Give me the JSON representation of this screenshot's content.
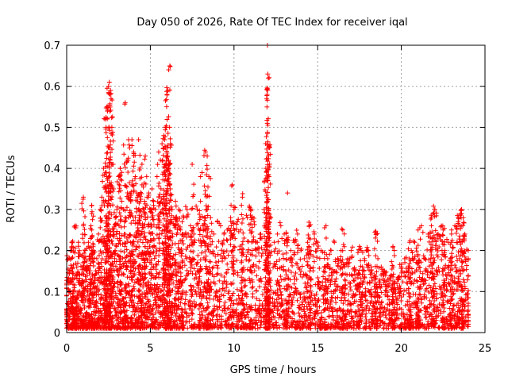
{
  "chart_data": {
    "type": "scatter",
    "title": "Day 050 of 2026, Rate Of TEC Index for receiver iqal",
    "xlabel": "GPS time / hours",
    "ylabel": "ROTI / TECUs",
    "xlim": [
      0,
      25
    ],
    "ylim": [
      0,
      0.7
    ],
    "xticks": [
      0,
      5,
      10,
      15,
      20,
      25
    ],
    "yticks": [
      0,
      0.1,
      0.2,
      0.3,
      0.4,
      0.5,
      0.6,
      0.7
    ],
    "xtick_labels": [
      "0",
      "5",
      "10",
      "15",
      "20",
      "25"
    ],
    "ytick_labels": [
      "0",
      "0.1",
      "0.2",
      "0.3",
      "0.4",
      "0.5",
      "0.6",
      "0.7"
    ],
    "grid": true,
    "marker": "plus",
    "color": "#ff0000",
    "series": [
      {
        "name": "ROTI",
        "x": [
          0.0,
          0.1,
          0.2,
          0.3,
          0.4,
          0.5,
          0.6,
          0.7,
          0.8,
          0.9,
          1.0,
          1.1,
          1.2,
          1.3,
          1.4,
          1.5,
          1.6,
          1.7,
          1.8,
          1.9,
          2.0,
          2.1,
          2.2,
          2.3,
          2.4,
          2.5,
          2.6,
          2.7,
          2.8,
          2.9,
          3.0,
          3.1,
          3.2,
          3.3,
          3.4,
          3.5,
          3.6,
          3.7,
          3.8,
          3.9,
          4.0,
          4.1,
          4.2,
          4.3,
          4.4,
          4.5,
          4.6,
          4.7,
          4.8,
          4.9,
          5.0,
          5.1,
          5.2,
          5.3,
          5.4,
          5.5,
          5.6,
          5.7,
          5.8,
          5.9,
          6.0,
          6.1,
          6.2,
          6.3,
          6.4,
          6.5,
          6.6,
          6.7,
          6.8,
          6.9,
          7.0,
          7.2,
          7.4,
          7.6,
          7.8,
          8.0,
          8.2,
          8.4,
          8.6,
          8.8,
          9.0,
          9.2,
          9.4,
          9.6,
          9.8,
          10.0,
          10.2,
          10.4,
          10.6,
          10.8,
          11.0,
          11.2,
          11.4,
          11.6,
          11.8,
          12.0,
          12.2,
          12.4,
          12.6,
          12.8,
          13.0,
          13.2,
          13.4,
          13.6,
          13.8,
          14.0,
          14.2,
          14.4,
          14.6,
          14.8,
          15.0,
          15.2,
          15.4,
          15.6,
          15.8,
          16.0,
          16.2,
          16.4,
          16.6,
          16.8,
          17.0,
          17.2,
          17.4,
          17.6,
          17.8,
          18.0,
          18.2,
          18.4,
          18.6,
          18.8,
          19.0,
          19.2,
          19.4,
          19.6,
          19.8,
          20.0,
          20.2,
          20.4,
          20.6,
          20.8,
          21.0,
          21.2,
          21.4,
          21.6,
          21.8,
          22.0,
          22.2,
          22.4,
          22.6,
          22.8,
          23.0,
          23.2,
          23.4,
          23.6,
          23.8,
          24.0,
          2.5,
          2.55,
          2.6,
          2.62,
          2.65,
          2.4,
          2.45,
          2.3,
          2.35,
          3.5,
          6.0,
          6.05,
          6.1,
          6.15,
          6.2,
          5.95,
          5.9,
          5.85,
          12.0,
          12.02,
          12.05,
          11.98,
          11.95,
          12.1,
          12.08,
          11.9,
          8.3,
          8.4,
          8.5,
          9.9,
          13.2,
          16.5,
          17.5,
          21.8,
          22.0,
          23.6,
          23.7,
          4.3,
          4.5,
          4.7,
          3.9,
          3.2,
          1.0,
          1.5,
          0.5,
          0.3,
          7.5,
          8.0,
          10.5,
          11.0,
          14.5,
          15.5,
          18.5,
          19.5,
          20.5,
          21.0,
          22.5,
          23.0,
          23.4
        ],
        "y": [
          0.12,
          0.18,
          0.15,
          0.2,
          0.1,
          0.08,
          0.14,
          0.22,
          0.19,
          0.12,
          0.26,
          0.2,
          0.16,
          0.22,
          0.18,
          0.25,
          0.2,
          0.14,
          0.18,
          0.24,
          0.3,
          0.33,
          0.4,
          0.35,
          0.38,
          0.45,
          0.42,
          0.5,
          0.35,
          0.28,
          0.3,
          0.38,
          0.4,
          0.32,
          0.3,
          0.28,
          0.42,
          0.47,
          0.33,
          0.36,
          0.44,
          0.38,
          0.34,
          0.3,
          0.32,
          0.36,
          0.3,
          0.28,
          0.33,
          0.34,
          0.3,
          0.35,
          0.32,
          0.3,
          0.38,
          0.44,
          0.42,
          0.46,
          0.48,
          0.5,
          0.45,
          0.4,
          0.35,
          0.3,
          0.28,
          0.32,
          0.27,
          0.3,
          0.25,
          0.24,
          0.28,
          0.3,
          0.26,
          0.24,
          0.3,
          0.32,
          0.26,
          0.3,
          0.28,
          0.24,
          0.27,
          0.26,
          0.24,
          0.25,
          0.28,
          0.3,
          0.27,
          0.25,
          0.23,
          0.28,
          0.3,
          0.27,
          0.22,
          0.24,
          0.3,
          0.32,
          0.28,
          0.22,
          0.24,
          0.26,
          0.24,
          0.22,
          0.2,
          0.22,
          0.24,
          0.2,
          0.18,
          0.22,
          0.2,
          0.24,
          0.22,
          0.2,
          0.16,
          0.18,
          0.2,
          0.22,
          0.18,
          0.2,
          0.16,
          0.18,
          0.2,
          0.15,
          0.14,
          0.2,
          0.18,
          0.2,
          0.16,
          0.14,
          0.18,
          0.16,
          0.15,
          0.13,
          0.14,
          0.12,
          0.13,
          0.16,
          0.18,
          0.15,
          0.2,
          0.22,
          0.25,
          0.26,
          0.18,
          0.24,
          0.28,
          0.3,
          0.24,
          0.26,
          0.2,
          0.22,
          0.24,
          0.26,
          0.28,
          0.3,
          0.24,
          0.2,
          0.6,
          0.61,
          0.58,
          0.59,
          0.57,
          0.55,
          0.54,
          0.52,
          0.5,
          0.56,
          0.58,
          0.59,
          0.64,
          0.5,
          0.46,
          0.5,
          0.45,
          0.47,
          0.7,
          0.63,
          0.62,
          0.58,
          0.57,
          0.45,
          0.455,
          0.4,
          0.44,
          0.43,
          0.38,
          0.36,
          0.34,
          0.25,
          0.21,
          0.26,
          0.3,
          0.29,
          0.28,
          0.47,
          0.41,
          0.43,
          0.47,
          0.4,
          0.33,
          0.31,
          0.26,
          0.22,
          0.41,
          0.38,
          0.33,
          0.3,
          0.26,
          0.26,
          0.24,
          0.21,
          0.22,
          0.19,
          0.25,
          0.22,
          0.27
        ]
      }
    ]
  }
}
